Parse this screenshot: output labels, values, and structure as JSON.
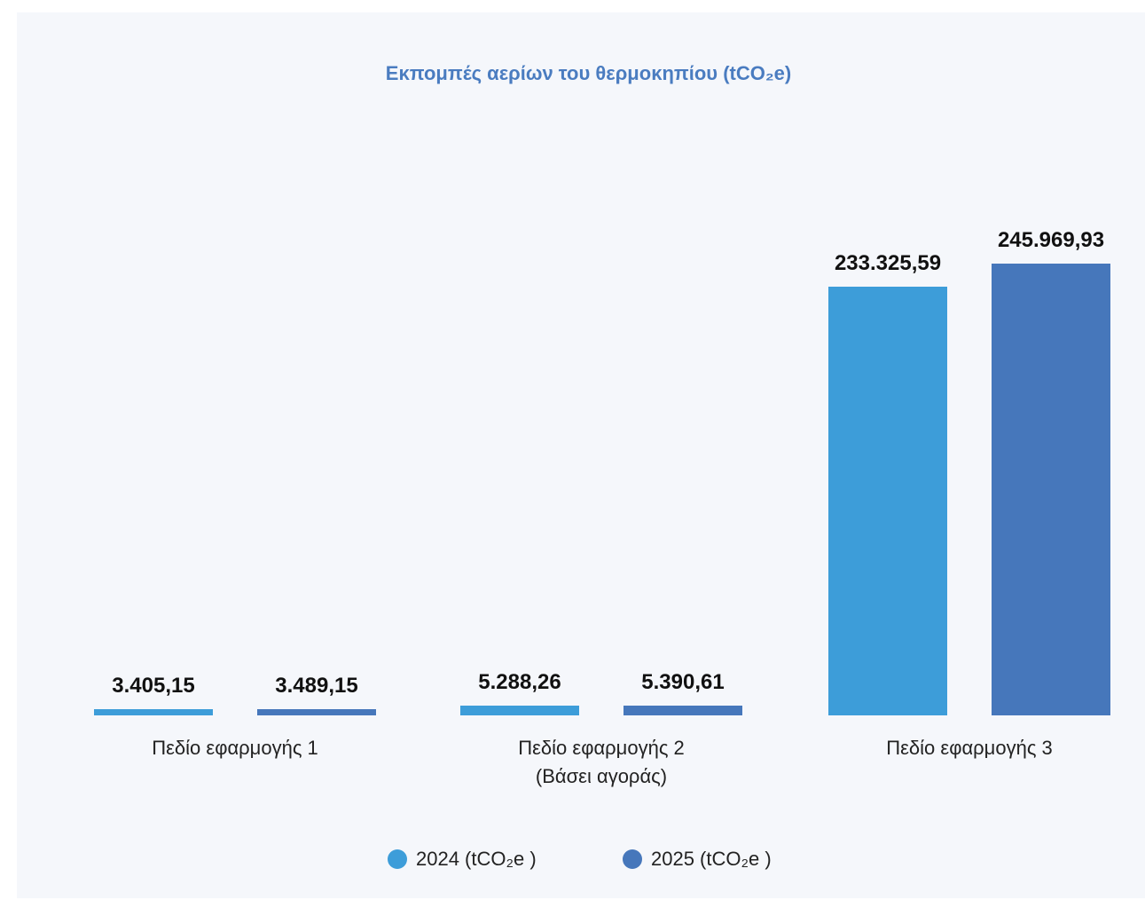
{
  "chart_data": {
    "type": "bar",
    "title": "Εκπομπές αερίων του θερμοκηπίου (tCO₂e)",
    "categories": [
      "Πεδίο εφαρμογής 1",
      "Πεδίο εφαρμογής 2\n(Βάσει αγοράς)",
      "Πεδίο εφαρμογής 3"
    ],
    "series": [
      {
        "name": "2024 (tCO₂e )",
        "color": "#3d9dd9",
        "values": [
          3405.15,
          5288.26,
          233325.59
        ],
        "value_labels": [
          "3.405,15",
          "5.288,26",
          "233.325,59"
        ]
      },
      {
        "name": "2025 (tCO₂e )",
        "color": "#4677bb",
        "values": [
          3489.15,
          5390.61,
          245969.93
        ],
        "value_labels": [
          "3.489,15",
          "5.390,61",
          "245.969,93"
        ]
      }
    ]
  }
}
